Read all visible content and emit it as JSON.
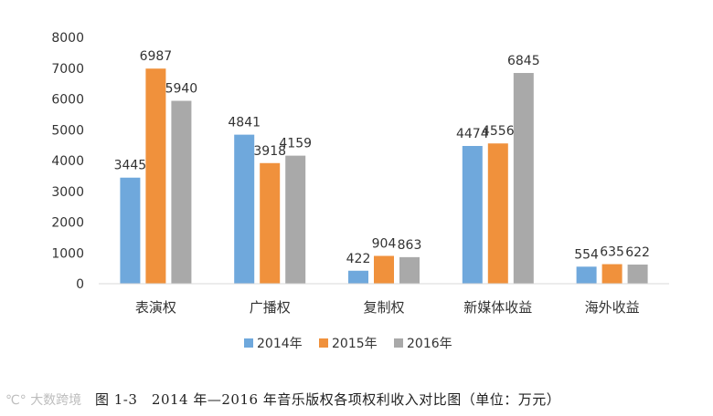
{
  "chart_data": {
    "type": "bar",
    "categories": [
      "表演权",
      "广播权",
      "复制权",
      "新媒体收益",
      "海外收益"
    ],
    "series": [
      {
        "name": "2014年",
        "color": "#6fa8dc",
        "values": [
          3445,
          4841,
          422,
          4474,
          554
        ]
      },
      {
        "name": "2015年",
        "color": "#f0913c",
        "values": [
          6987,
          3918,
          904,
          4556,
          635
        ]
      },
      {
        "name": "2016年",
        "color": "#a9a9a9",
        "values": [
          5940,
          4159,
          863,
          6845,
          622
        ]
      }
    ],
    "ylim": [
      0,
      8000
    ],
    "yticks": [
      0,
      1000,
      2000,
      3000,
      4000,
      5000,
      6000,
      7000,
      8000
    ],
    "legend_position": "bottom",
    "grid": false
  },
  "caption": "图 1-3　2014 年—2016 年音乐版权各项权利收入对比图（单位：万元）",
  "watermark": "大数跨境"
}
